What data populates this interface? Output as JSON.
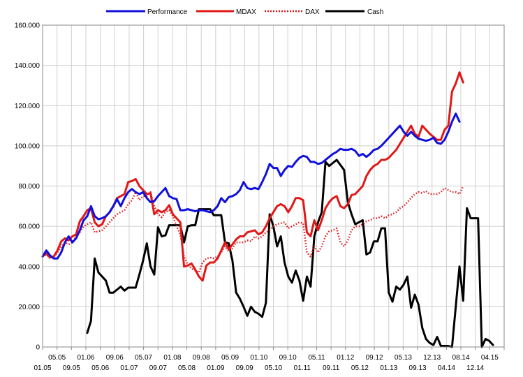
{
  "chart_data": {
    "type": "line",
    "title": "",
    "xlabel": "",
    "ylabel": "",
    "ylim": [
      0,
      160000
    ],
    "y_ticks": [
      "0",
      "20.000",
      "40.000",
      "60.000",
      "80.000",
      "100.000",
      "120.000",
      "140.000",
      "160.000"
    ],
    "x_labels_top": [
      "05.05",
      "01.06",
      "09.06",
      "05.07",
      "01.08",
      "09.08",
      "05.09",
      "01.10",
      "09.10",
      "05.11",
      "01.12",
      "09.12",
      "05.13",
      "12.13",
      "08.14",
      "04.15"
    ],
    "x_labels_bottom": [
      "01.05",
      "09.05",
      "05.06",
      "01.07",
      "09.07",
      "05.08",
      "01.09",
      "09.09",
      "05.10",
      "01.11",
      "09.11",
      "05.12",
      "01.13",
      "09.13",
      "04.14",
      "12.14"
    ],
    "grid": true,
    "legend_position": "top",
    "x_range": [
      0,
      124
    ],
    "series": [
      {
        "name": "Performance",
        "color": "#1010dd",
        "style": "solid",
        "x_start": 0,
        "values": [
          45000,
          48000,
          45500,
          44000,
          44000,
          47000,
          52000,
          55000,
          52000,
          54000,
          58000,
          63000,
          65000,
          70000,
          65000,
          63500,
          64000,
          65000,
          67000,
          70000,
          73500,
          70000,
          74000,
          77000,
          78500,
          77000,
          76000,
          77000,
          74000,
          72000,
          72500,
          75000,
          77000,
          79000,
          75000,
          74000,
          73500,
          68000,
          68000,
          68500,
          68000,
          67500,
          68000,
          68000,
          67500,
          67000,
          68000,
          70000,
          74000,
          72000,
          74500,
          75000,
          76000,
          78000,
          82000,
          79000,
          78500,
          79000,
          78500,
          82000,
          86000,
          91000,
          89000,
          89000,
          85000,
          88000,
          90000,
          89500,
          92000,
          94000,
          95000,
          94500,
          92000,
          92000,
          91000,
          91500,
          93000,
          94500,
          96000,
          97000,
          98500,
          98000,
          98000,
          98500,
          97500,
          95000,
          96000,
          94500,
          96000,
          98000,
          98500,
          100000,
          102000,
          104000,
          106000,
          108000,
          110000,
          107000,
          105000,
          107000,
          105000,
          103500,
          103000,
          102500,
          103000,
          104000,
          101500,
          101000,
          103000,
          107000,
          112000,
          116000,
          112000
        ]
      },
      {
        "name": "MDAX",
        "color": "#e01818",
        "style": "solid",
        "x_start": 0,
        "values": [
          45000,
          46500,
          44500,
          45000,
          48000,
          52500,
          54000,
          53000,
          55000,
          56000,
          62500,
          65000,
          68000,
          69000,
          62000,
          60000,
          61000,
          65000,
          67000,
          70000,
          74000,
          75000,
          76000,
          82000,
          82500,
          83500,
          80000,
          78000,
          76000,
          76500,
          66000,
          68000,
          67000,
          68000,
          70500,
          66000,
          64000,
          62000,
          40000,
          40500,
          41500,
          38500,
          35000,
          33000,
          40500,
          42000,
          42000,
          44000,
          48000,
          52000,
          48500,
          51000,
          53500,
          55000,
          55000,
          57000,
          57500,
          58000,
          56000,
          57000,
          60000,
          64000,
          67000,
          70000,
          71000,
          70000,
          67000,
          70000,
          74000,
          74000,
          73000,
          57000,
          55000,
          63000,
          58000,
          63000,
          69000,
          72000,
          74000,
          75000,
          70000,
          69000,
          71000,
          75500,
          76000,
          78000,
          80000,
          85000,
          88000,
          90000,
          91000,
          93000,
          93000,
          94000,
          96000,
          98000,
          101000,
          104000,
          107000,
          110000,
          106000,
          104500,
          110000,
          108000,
          106000,
          104500,
          103000,
          103000,
          108000,
          110000,
          127000,
          131000,
          136500,
          131500
        ]
      },
      {
        "name": "DAX",
        "color": "#e01818",
        "style": "dotted",
        "x_start": 0,
        "values": [
          45000,
          46000,
          44000,
          45000,
          47000,
          50000,
          52000,
          51000,
          52000,
          55000,
          57000,
          60000,
          61000,
          62000,
          57000,
          57500,
          58000,
          60000,
          62000,
          64000,
          66000,
          67000,
          68000,
          71000,
          73000,
          77000,
          73000,
          75000,
          75000,
          77000,
          70000,
          66000,
          64500,
          67000,
          68000,
          65000,
          60000,
          56000,
          45000,
          41000,
          39000,
          38000,
          37000,
          42000,
          44000,
          44500,
          44000,
          45000,
          47000,
          50000,
          47500,
          49000,
          52000,
          52000,
          52000,
          53000,
          52500,
          55000,
          54000,
          55000,
          57000,
          58000,
          60000,
          61000,
          61500,
          62000,
          59000,
          60000,
          61000,
          62000,
          61500,
          47000,
          45000,
          50000,
          47000,
          50000,
          55000,
          57500,
          58000,
          59000,
          52000,
          50000,
          53000,
          58000,
          60000,
          60000,
          61000,
          62500,
          63000,
          64000,
          64000,
          65000,
          64000,
          65500,
          66000,
          67000,
          69000,
          70000,
          72000,
          74000,
          76000,
          77000,
          76500,
          77500,
          76000,
          76000,
          76000,
          77000,
          79000,
          78000,
          77000,
          77000,
          76000,
          80000
        ]
      },
      {
        "name": "Cash",
        "color": "#000000",
        "style": "solid",
        "x_start": 12,
        "values": [
          7000,
          13000,
          44000,
          37000,
          35000,
          33000,
          27000,
          27000,
          28500,
          30000,
          28000,
          29500,
          29500,
          29500,
          36000,
          43000,
          51500,
          40000,
          36000,
          59500,
          55000,
          55500,
          60500,
          60500,
          60500,
          60500,
          52000,
          60000,
          60500,
          60500,
          68500,
          68500,
          68500,
          68500,
          65500,
          65500,
          65500,
          52000,
          51500,
          43000,
          27000,
          24000,
          20000,
          15500,
          20000,
          17500,
          16500,
          15000,
          22000,
          66000,
          60000,
          50000,
          55000,
          42000,
          35000,
          32000,
          38000,
          33000,
          23000,
          35000,
          30000,
          55000,
          62000,
          67000,
          92000,
          90000,
          91500,
          93000,
          90500,
          88000,
          72000,
          66000,
          61000,
          62000,
          63000,
          46000,
          47000,
          52500,
          52500,
          59000,
          59000,
          27000,
          22500,
          30000,
          28500,
          31000,
          35000,
          19500,
          26000,
          21000,
          9500,
          4000,
          2000,
          1000,
          5000,
          500,
          500,
          500,
          0,
          20000,
          40000,
          23000,
          69000,
          64000,
          64000,
          64000,
          0,
          4000,
          3000,
          1000
        ]
      }
    ]
  }
}
